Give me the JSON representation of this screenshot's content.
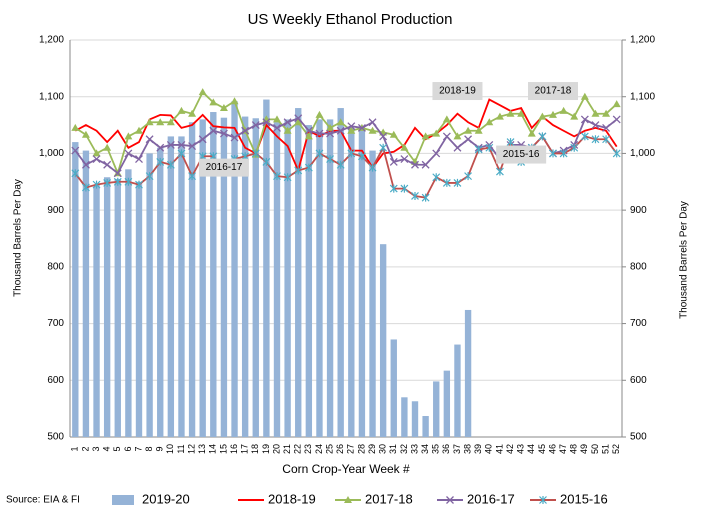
{
  "chart_data": {
    "type": "bar",
    "title": "US Weekly Ethanol Production",
    "x_label": "Corn Crop-Year Week #",
    "y_label": "Thousand Barrels Per Day",
    "y2_label": "Thousand Barrels Per Day",
    "source": "Source: EIA & FI",
    "categories": [
      "1",
      "2",
      "3",
      "4",
      "5",
      "6",
      "7",
      "8",
      "9",
      "10",
      "11",
      "12",
      "13",
      "14",
      "15",
      "16",
      "17",
      "18",
      "19",
      "20",
      "21",
      "22",
      "23",
      "24",
      "25",
      "26",
      "27",
      "28",
      "29",
      "30",
      "31",
      "32",
      "33",
      "34",
      "35",
      "36",
      "37",
      "38",
      "39",
      "40",
      "41",
      "42",
      "43",
      "44",
      "45",
      "46",
      "47",
      "48",
      "49",
      "50",
      "51",
      "52"
    ],
    "ylim": [
      500,
      1200
    ],
    "yticks": [
      {
        "value": 500,
        "label": "500"
      },
      {
        "value": 600,
        "label": "600"
      },
      {
        "value": 700,
        "label": "700"
      },
      {
        "value": 800,
        "label": "800"
      },
      {
        "value": 900,
        "label": "900"
      },
      {
        "value": 1000,
        "label": "1,000"
      },
      {
        "value": 1100,
        "label": "1,100"
      },
      {
        "value": 1200,
        "label": "1,200"
      }
    ],
    "y2lim": [
      500,
      1200
    ],
    "y2ticks": [
      {
        "value": 500,
        "label": "500"
      },
      {
        "value": 600,
        "label": "600"
      },
      {
        "value": 700,
        "label": "700"
      },
      {
        "value": 800,
        "label": "800"
      },
      {
        "value": 900,
        "label": "900"
      },
      {
        "value": 1000,
        "label": "1,000"
      },
      {
        "value": 1100,
        "label": "1,100"
      },
      {
        "value": 1200,
        "label": "1,200"
      }
    ],
    "legend": "bottom",
    "series": [
      {
        "name": "2019-20",
        "type": "bar",
        "color": "#95b3d7",
        "values": [
          1020,
          1005,
          945,
          958,
          955,
          972,
          950,
          1000,
          1010,
          1030,
          1030,
          1055,
          1060,
          1073,
          1063,
          1092,
          1065,
          1062,
          1095,
          1055,
          1060,
          1080,
          1050,
          1060,
          1060,
          1080,
          1045,
          1048,
          1005,
          840,
          672,
          570,
          563,
          537,
          598,
          617,
          663,
          724,
          null,
          null,
          null,
          null,
          null,
          null,
          null,
          null,
          null,
          null,
          null,
          null,
          null,
          null
        ]
      },
      {
        "name": "2018-19",
        "type": "line",
        "color": "#ff0000",
        "marker": "none",
        "values": [
          1040,
          1050,
          1040,
          1020,
          1040,
          1010,
          1020,
          1060,
          1068,
          1067,
          1045,
          1050,
          1068,
          1048,
          1046,
          1045,
          1010,
          1000,
          1050,
          1030,
          1013,
          970,
          1040,
          1030,
          1040,
          1040,
          1005,
          1005,
          975,
          1000,
          1003,
          1015,
          1045,
          1025,
          1035,
          1050,
          1070,
          1055,
          1045,
          1095,
          1085,
          1075,
          1080,
          1045,
          1065,
          1050,
          1040,
          1030,
          1040,
          1045,
          1040,
          1012
        ]
      },
      {
        "name": "2017-18",
        "type": "line",
        "color": "#9bbb59",
        "marker": "triangle",
        "values": [
          1045,
          1033,
          1000,
          1010,
          965,
          1030,
          1040,
          1055,
          1055,
          1055,
          1075,
          1070,
          1108,
          1090,
          1080,
          1092,
          1040,
          998,
          1060,
          1060,
          1040,
          1055,
          1030,
          1068,
          1045,
          1055,
          1040,
          1045,
          1040,
          1037,
          1033,
          1010,
          985,
          1030,
          1035,
          1060,
          1030,
          1040,
          1040,
          1055,
          1065,
          1070,
          1070,
          1035,
          1065,
          1068,
          1075,
          1065,
          1100,
          1070,
          1070,
          1087
        ]
      },
      {
        "name": "2016-17",
        "type": "line",
        "color": "#8064a2",
        "marker": "cross",
        "values": [
          1005,
          980,
          990,
          980,
          965,
          1000,
          990,
          1025,
          1010,
          1015,
          1015,
          1013,
          1025,
          1040,
          1035,
          1028,
          1040,
          1050,
          1055,
          1045,
          1055,
          1062,
          1040,
          1035,
          1035,
          1040,
          1048,
          1045,
          1055,
          1030,
          985,
          990,
          980,
          980,
          1000,
          1030,
          1010,
          1025,
          1010,
          1015,
          990,
          1015,
          1015,
          1010,
          1030,
          1000,
          1005,
          1015,
          1060,
          1050,
          1045,
          1060
        ]
      },
      {
        "name": "2015-16",
        "type": "line",
        "color": "#c0504d",
        "marker": "star",
        "marker_color": "#4bacc6",
        "values": [
          965,
          940,
          945,
          948,
          950,
          950,
          945,
          960,
          985,
          980,
          1000,
          960,
          995,
          995,
          970,
          990,
          995,
          1000,
          985,
          960,
          958,
          970,
          975,
          1000,
          990,
          980,
          1000,
          995,
          975,
          1010,
          938,
          938,
          925,
          922,
          958,
          948,
          948,
          960,
          1007,
          1010,
          968,
          1020,
          985,
          1010,
          1030,
          1000,
          1000,
          1010,
          1030,
          1025,
          1025,
          1000
        ]
      }
    ],
    "annotations": [
      {
        "text": "2018-19",
        "week": 37,
        "value": 1110
      },
      {
        "text": "2017-18",
        "week": 46,
        "value": 1110
      },
      {
        "text": "2016-17",
        "week": 15,
        "value": 975
      },
      {
        "text": "2015-16",
        "week": 43,
        "value": 998
      }
    ]
  }
}
